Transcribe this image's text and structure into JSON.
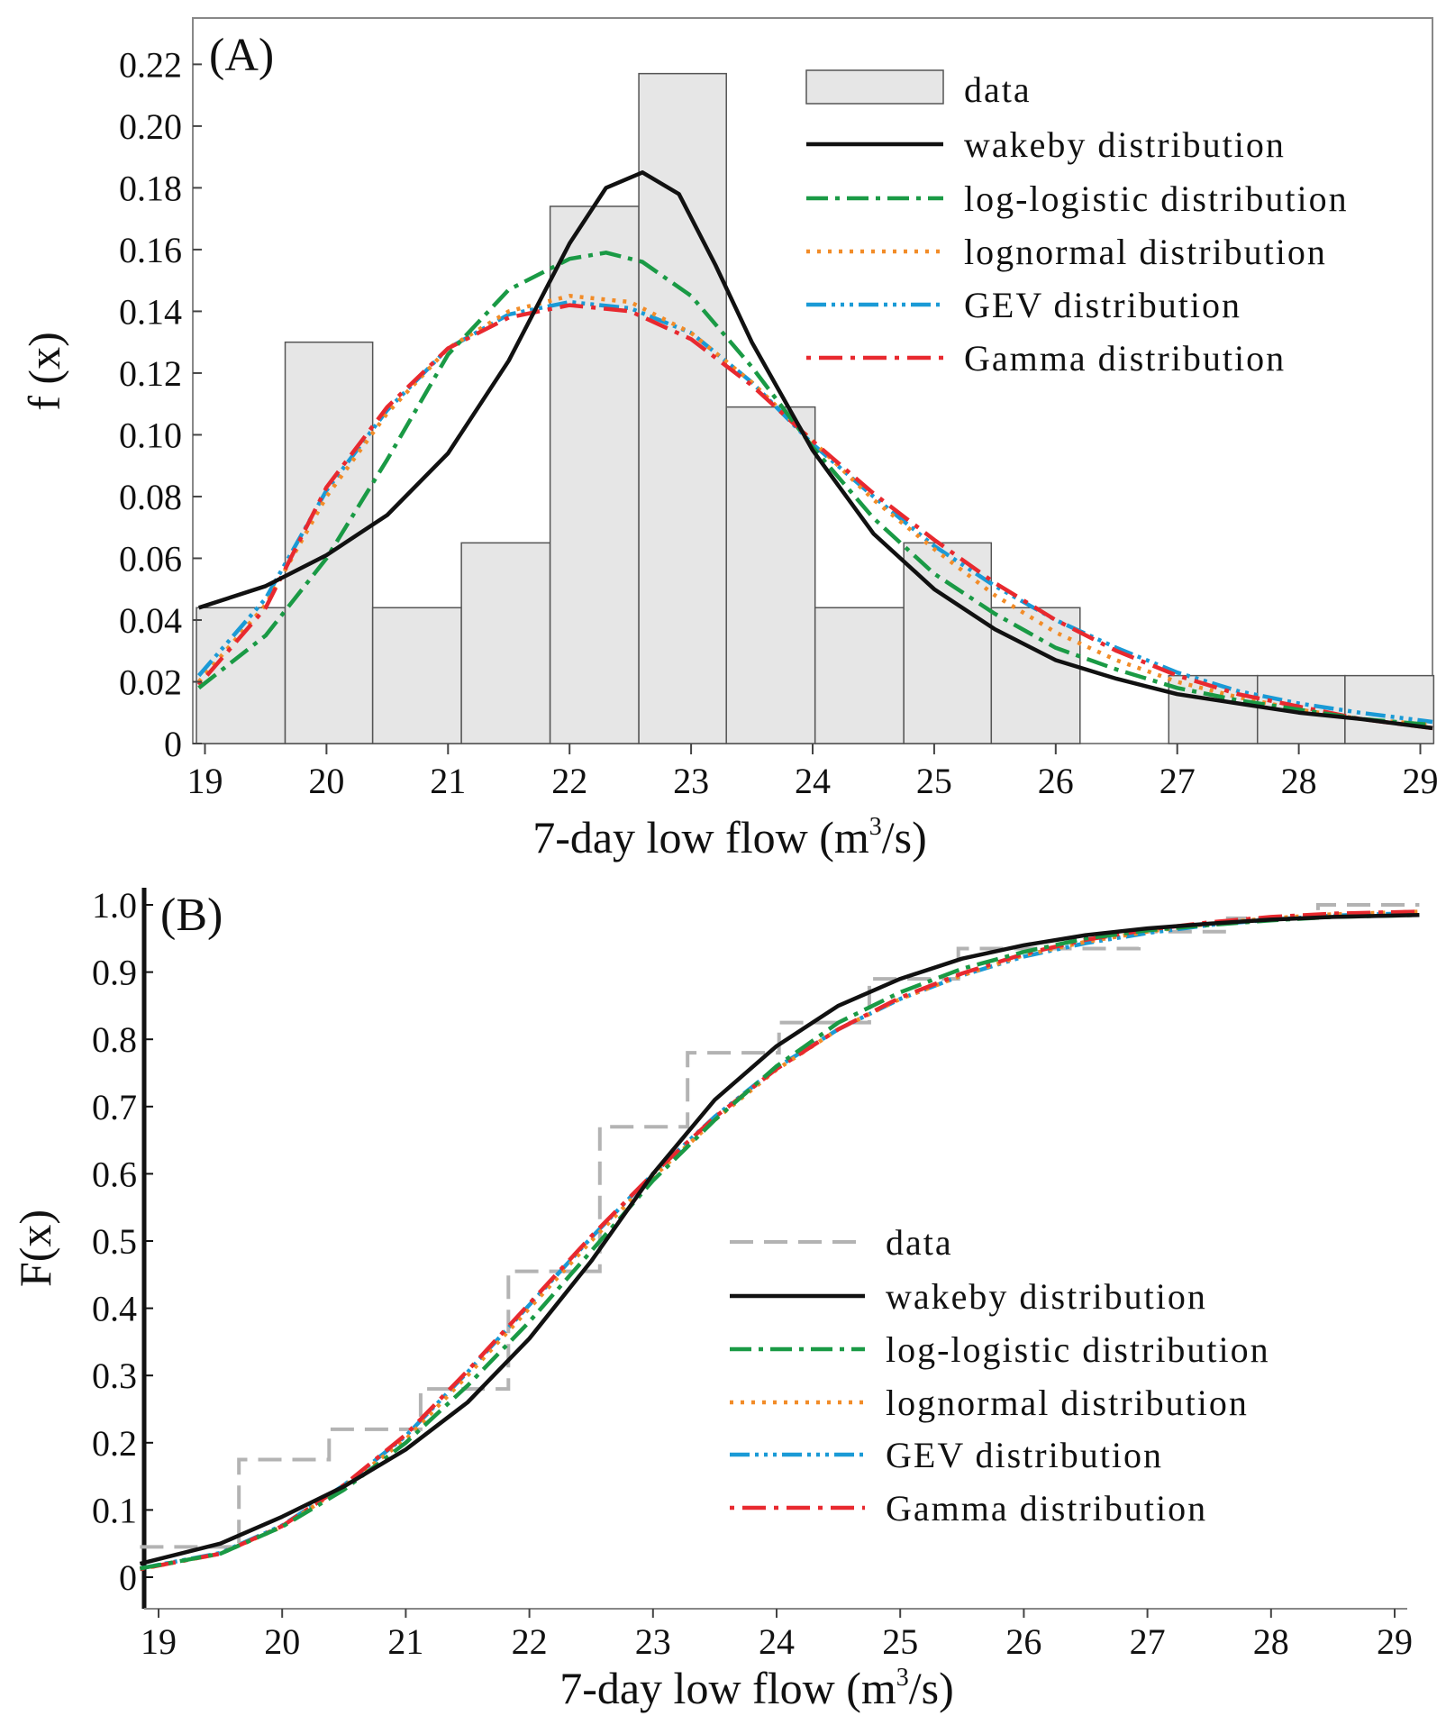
{
  "chart_data": [
    {
      "panel": "A",
      "type": "bar",
      "panel_label": "(A)",
      "xlabel": "7-day low flow",
      "xlabel_unit_prefix": "(m",
      "xlabel_unit_sup": "3",
      "xlabel_unit_suffix": "/s)",
      "ylabel": "f (x)",
      "xlim": [
        18.9,
        29.1
      ],
      "ylim": [
        0,
        0.235
      ],
      "x_ticks": [
        19,
        20,
        21,
        22,
        23,
        24,
        25,
        26,
        27,
        28,
        29
      ],
      "y_ticks": [
        0,
        0.02,
        0.04,
        0.06,
        0.08,
        0.1,
        0.12,
        0.14,
        0.16,
        0.18,
        0.2,
        0.22
      ],
      "y_tick_labels": [
        "0",
        "0.02",
        "0.04",
        "0.06",
        "0.08",
        "0.10",
        "0.12",
        "0.14",
        "0.16",
        "0.18",
        "0.20",
        "0.22"
      ],
      "bin_edges": [
        18.93,
        19.66,
        20.38,
        21.11,
        21.84,
        22.57,
        23.29,
        24.02,
        24.75,
        25.47,
        26.2,
        26.93,
        27.66,
        28.38,
        29.11
      ],
      "histogram_values": [
        0.044,
        0.13,
        0.044,
        0.065,
        0.174,
        0.217,
        0.109,
        0.044,
        0.065,
        0.044,
        0.0,
        0.022,
        0.022,
        0.022
      ],
      "series": [
        {
          "name": "wakeby distribution",
          "x": [
            18.95,
            19.5,
            20,
            20.5,
            21,
            21.5,
            22,
            22.3,
            22.6,
            22.9,
            23.2,
            23.5,
            24,
            24.5,
            25,
            25.5,
            26,
            26.5,
            27,
            27.5,
            28,
            28.5,
            29.1
          ],
          "y": [
            0.044,
            0.051,
            0.061,
            0.074,
            0.094,
            0.124,
            0.162,
            0.18,
            0.185,
            0.178,
            0.155,
            0.13,
            0.095,
            0.068,
            0.05,
            0.037,
            0.027,
            0.021,
            0.016,
            0.013,
            0.01,
            0.008,
            0.005
          ]
        },
        {
          "name": "log-logistic distribution",
          "x": [
            18.95,
            19.5,
            20,
            20.5,
            21,
            21.5,
            22,
            22.3,
            22.6,
            23,
            23.5,
            24,
            24.5,
            25,
            25.5,
            26,
            26.5,
            27,
            27.5,
            28,
            28.5,
            29.1
          ],
          "y": [
            0.018,
            0.035,
            0.06,
            0.092,
            0.126,
            0.147,
            0.157,
            0.159,
            0.156,
            0.145,
            0.122,
            0.096,
            0.073,
            0.055,
            0.042,
            0.031,
            0.024,
            0.018,
            0.014,
            0.011,
            0.008,
            0.006
          ]
        },
        {
          "name": "lognormal distribution",
          "x": [
            18.95,
            19.5,
            20,
            20.5,
            21,
            21.5,
            22,
            22.5,
            23,
            23.5,
            24,
            24.5,
            25,
            25.5,
            26,
            26.5,
            27,
            27.5,
            28,
            28.5,
            29.1
          ],
          "y": [
            0.02,
            0.045,
            0.08,
            0.107,
            0.128,
            0.14,
            0.145,
            0.143,
            0.133,
            0.117,
            0.098,
            0.079,
            0.063,
            0.048,
            0.036,
            0.027,
            0.02,
            0.015,
            0.011,
            0.008,
            0.006
          ]
        },
        {
          "name": "GEV distribution",
          "x": [
            18.95,
            19.5,
            20,
            20.5,
            21,
            21.5,
            22,
            22.5,
            23,
            23.5,
            24,
            24.5,
            25,
            25.5,
            26,
            26.5,
            27,
            27.5,
            28,
            28.5,
            29.1
          ],
          "y": [
            0.022,
            0.047,
            0.082,
            0.108,
            0.128,
            0.139,
            0.143,
            0.141,
            0.133,
            0.117,
            0.097,
            0.08,
            0.064,
            0.051,
            0.04,
            0.031,
            0.023,
            0.017,
            0.013,
            0.01,
            0.007
          ]
        },
        {
          "name": "Gamma distribution",
          "x": [
            18.95,
            19.5,
            20,
            20.5,
            21,
            21.5,
            22,
            22.5,
            23,
            23.5,
            24,
            24.5,
            25,
            25.5,
            26,
            26.5,
            27,
            27.5,
            28,
            28.5,
            29.1
          ],
          "y": [
            0.019,
            0.044,
            0.083,
            0.109,
            0.128,
            0.138,
            0.142,
            0.14,
            0.131,
            0.116,
            0.098,
            0.081,
            0.066,
            0.052,
            0.04,
            0.03,
            0.022,
            0.016,
            0.012,
            0.008,
            0.005
          ]
        }
      ],
      "legend": [
        "data",
        "wakeby distribution",
        "log-logistic distribution",
        "lognormal distribution",
        "GEV distribution",
        "Gamma distribution"
      ],
      "legend_position": "top-right",
      "grid": false
    },
    {
      "panel": "B",
      "type": "line",
      "panel_label": "(B)",
      "xlabel": "7-day low flow",
      "xlabel_unit_prefix": "(m",
      "xlabel_unit_sup": "3",
      "xlabel_unit_suffix": "/s)",
      "ylabel": "F(x)",
      "xlim": [
        18.85,
        29.2
      ],
      "ylim": [
        0,
        1.05
      ],
      "x_ticks": [
        19,
        20,
        21,
        22,
        23,
        24,
        25,
        26,
        27,
        28,
        29
      ],
      "y_ticks": [
        0,
        0.1,
        0.2,
        0.3,
        0.4,
        0.5,
        0.6,
        0.7,
        0.8,
        0.9,
        1.0
      ],
      "y_tick_labels": [
        "0",
        "0.1",
        "0.2",
        "0.3",
        "0.4",
        "0.5",
        "0.6",
        "0.7",
        "0.8",
        "0.9",
        "1.0"
      ],
      "data_step": {
        "name": "data",
        "x": [
          18.85,
          19.65,
          20.38,
          21.12,
          21.83,
          22.57,
          23.28,
          24.02,
          24.75,
          25.47,
          26.2,
          26.93,
          27.65,
          28.38,
          29.2
        ],
        "y": [
          0.045,
          0.175,
          0.22,
          0.28,
          0.455,
          0.67,
          0.78,
          0.825,
          0.89,
          0.935,
          0.935,
          0.96,
          0.98,
          1.0,
          1.0
        ]
      },
      "series": [
        {
          "name": "wakeby distribution",
          "x": [
            18.85,
            19.5,
            20,
            20.5,
            21,
            21.5,
            22,
            22.5,
            23,
            23.5,
            24,
            24.5,
            25,
            25.5,
            26,
            26.5,
            27,
            27.5,
            28,
            28.5,
            29.2
          ],
          "y": [
            0.02,
            0.05,
            0.09,
            0.135,
            0.19,
            0.26,
            0.355,
            0.47,
            0.6,
            0.71,
            0.79,
            0.85,
            0.89,
            0.92,
            0.94,
            0.955,
            0.965,
            0.972,
            0.978,
            0.982,
            0.985
          ]
        },
        {
          "name": "log-logistic distribution",
          "x": [
            18.85,
            19.5,
            20,
            20.5,
            21,
            21.5,
            22,
            22.5,
            23,
            23.5,
            24,
            24.5,
            25,
            25.5,
            26,
            26.5,
            27,
            27.5,
            28,
            28.5,
            29.2
          ],
          "y": [
            0.013,
            0.035,
            0.075,
            0.13,
            0.2,
            0.285,
            0.38,
            0.485,
            0.59,
            0.68,
            0.76,
            0.825,
            0.87,
            0.905,
            0.93,
            0.95,
            0.962,
            0.97,
            0.977,
            0.982,
            0.985
          ]
        },
        {
          "name": "lognormal distribution",
          "x": [
            18.85,
            19.5,
            20,
            20.5,
            21,
            21.5,
            22,
            22.5,
            23,
            23.5,
            24,
            24.5,
            25,
            25.5,
            26,
            26.5,
            27,
            27.5,
            28,
            28.5,
            29.2
          ],
          "y": [
            0.012,
            0.035,
            0.075,
            0.135,
            0.205,
            0.3,
            0.4,
            0.5,
            0.595,
            0.68,
            0.755,
            0.815,
            0.86,
            0.895,
            0.925,
            0.945,
            0.96,
            0.972,
            0.98,
            0.986,
            0.99
          ]
        },
        {
          "name": "GEV distribution",
          "x": [
            18.85,
            19.5,
            20,
            20.5,
            21,
            21.5,
            22,
            22.5,
            23,
            23.5,
            24,
            24.5,
            25,
            25.5,
            26,
            26.5,
            27,
            27.5,
            28,
            28.5,
            29.2
          ],
          "y": [
            0.013,
            0.036,
            0.077,
            0.137,
            0.21,
            0.305,
            0.405,
            0.505,
            0.6,
            0.685,
            0.758,
            0.815,
            0.86,
            0.895,
            0.923,
            0.943,
            0.958,
            0.97,
            0.978,
            0.984,
            0.988
          ]
        },
        {
          "name": "Gamma distribution",
          "x": [
            18.85,
            19.5,
            20,
            20.5,
            21,
            21.5,
            22,
            22.5,
            23,
            23.5,
            24,
            24.5,
            25,
            25.5,
            26,
            26.5,
            27,
            27.5,
            28,
            28.5,
            29.2
          ],
          "y": [
            0.012,
            0.035,
            0.076,
            0.137,
            0.212,
            0.307,
            0.407,
            0.507,
            0.6,
            0.684,
            0.756,
            0.815,
            0.862,
            0.898,
            0.927,
            0.948,
            0.963,
            0.974,
            0.982,
            0.987,
            0.99
          ]
        }
      ],
      "legend": [
        "data",
        "wakeby distribution",
        "log-logistic distribution",
        "lognormal distribution",
        "GEV distribution",
        "Gamma distribution"
      ],
      "legend_position": "lower-right",
      "grid": false
    }
  ],
  "styles": {
    "wakeby distribution": {
      "color": "#111111"
    },
    "log-logistic distribution": {
      "color": "#1a9a45"
    },
    "lognormal distribution": {
      "color": "#f28c28"
    },
    "GEV distribution": {
      "color": "#1a9ad6"
    },
    "Gamma distribution": {
      "color": "#e8292f"
    },
    "data_bar_fill": "#e6e6e6",
    "data_bar_stroke": "#555555",
    "data_step_color": "#b3b3b3"
  }
}
